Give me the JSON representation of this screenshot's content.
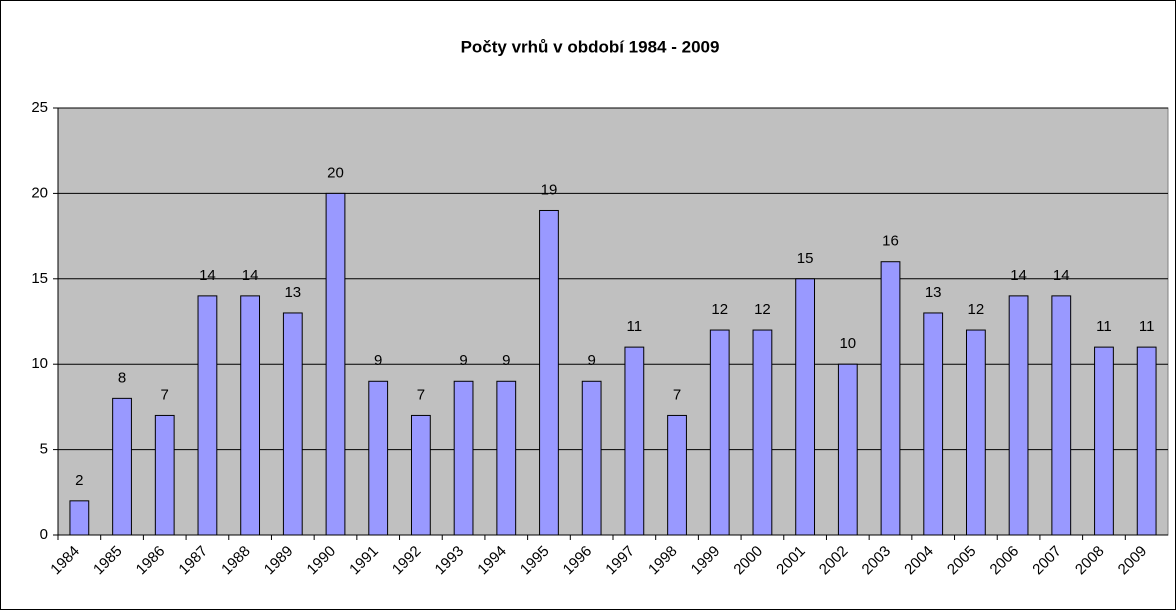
{
  "chart_data": {
    "type": "bar",
    "title": "Počty vrhů v období 1984 - 2009",
    "categories": [
      "1984",
      "1985",
      "1986",
      "1987",
      "1988",
      "1989",
      "1990",
      "1991",
      "1992",
      "1993",
      "1994",
      "1995",
      "1996",
      "1997",
      "1998",
      "1999",
      "2000",
      "2001",
      "2002",
      "2003",
      "2004",
      "2005",
      "2006",
      "2007",
      "2008",
      "2009"
    ],
    "values": [
      2,
      8,
      7,
      14,
      14,
      13,
      20,
      9,
      7,
      9,
      9,
      19,
      9,
      11,
      7,
      12,
      12,
      15,
      10,
      16,
      13,
      12,
      14,
      14,
      11,
      11
    ],
    "color": "#9999ff",
    "ylim": [
      0,
      25
    ],
    "yticks": [
      0,
      5,
      10,
      15,
      20,
      25
    ],
    "grid": true,
    "data_labels": true
  }
}
